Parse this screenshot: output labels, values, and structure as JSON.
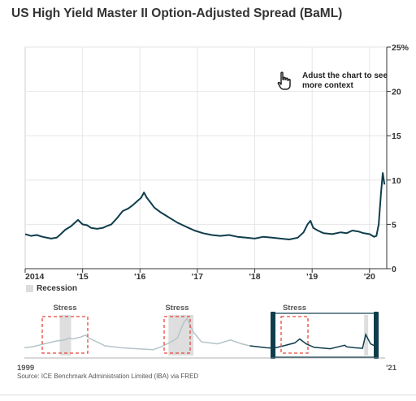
{
  "title": "US High Yield Master II Option-Adjusted Spread (BaML)",
  "hint": "Adust the chart to see more context",
  "legend": {
    "recession_label": "Recession"
  },
  "overview": {
    "stress_labels": [
      "Stress",
      "Stress",
      "Stress"
    ],
    "start_label": "1999",
    "end_label": "'21"
  },
  "source": "Source: ICE Benchmark Administration Limited (IBA) via FRED",
  "colors": {
    "line": "#0f3d4c",
    "overview_line": "#b5c4c8",
    "stress_box": "#e8463a",
    "recession": "#dedede",
    "grid": "#e6e6e6"
  },
  "icons": {
    "hint": "pointing-hand-icon"
  },
  "chart_data": [
    {
      "type": "line",
      "title": "US High Yield Master II Option-Adjusted Spread (BaML)",
      "y_unit": "%",
      "ylim": [
        0,
        25
      ],
      "yticks": [
        "25%",
        "20",
        "15",
        "10",
        "5",
        "0"
      ],
      "xlim": [
        2014.0,
        2020.3
      ],
      "xticks": [
        "2014",
        "'15",
        "'16",
        "'17",
        "'18",
        "'19",
        "'20"
      ],
      "grid": true,
      "series": [
        {
          "x": [
            2014.0,
            2014.1,
            2014.2,
            2014.3,
            2014.45,
            2014.55,
            2014.62,
            2014.7,
            2014.8,
            2014.92,
            2015.0,
            2015.08,
            2015.15,
            2015.25,
            2015.35,
            2015.42,
            2015.5,
            2015.6,
            2015.7,
            2015.8,
            2015.88,
            2015.95,
            2016.02,
            2016.07,
            2016.12,
            2016.18,
            2016.25,
            2016.35,
            2016.45,
            2016.55,
            2016.65,
            2016.75,
            2016.85,
            2016.95,
            2017.1,
            2017.25,
            2017.4,
            2017.55,
            2017.7,
            2017.85,
            2018.0,
            2018.15,
            2018.3,
            2018.45,
            2018.6,
            2018.75,
            2018.85,
            2018.92,
            2018.97,
            2019.02,
            2019.1,
            2019.2,
            2019.35,
            2019.5,
            2019.6,
            2019.7,
            2019.8,
            2019.9,
            2020.0,
            2020.08,
            2020.12,
            2020.16,
            2020.2,
            2020.23,
            2020.26
          ],
          "y": [
            3.9,
            3.7,
            3.8,
            3.6,
            3.4,
            3.5,
            3.9,
            4.4,
            4.8,
            5.5,
            5.0,
            4.9,
            4.6,
            4.5,
            4.6,
            4.8,
            5.0,
            5.7,
            6.5,
            6.8,
            7.2,
            7.6,
            8.0,
            8.6,
            8.0,
            7.5,
            6.9,
            6.4,
            6.0,
            5.6,
            5.2,
            4.9,
            4.6,
            4.3,
            4.0,
            3.8,
            3.7,
            3.8,
            3.6,
            3.5,
            3.4,
            3.6,
            3.5,
            3.4,
            3.3,
            3.5,
            4.1,
            5.0,
            5.4,
            4.6,
            4.3,
            4.0,
            3.9,
            4.1,
            4.0,
            4.3,
            4.2,
            4.0,
            3.9,
            3.6,
            3.7,
            5.0,
            8.5,
            10.8,
            9.5
          ],
          "color": "#0f3d4c"
        }
      ]
    }
  ]
}
